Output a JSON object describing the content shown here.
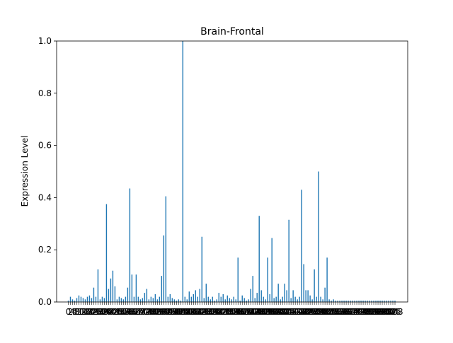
{
  "chart_data": {
    "type": "bar",
    "title": "Brain-Frontal",
    "xlabel": "",
    "ylabel": "Expression Level",
    "ylim": [
      0,
      1.0
    ],
    "yticks": [
      0.0,
      0.2,
      0.4,
      0.6,
      0.8,
      1.0
    ],
    "ytick_labels": [
      "0.0",
      "0.2",
      "0.4",
      "0.6",
      "0.8",
      "1.0"
    ],
    "xlim": [
      -11,
      320
    ],
    "xtick_labels_visible_start": "0",
    "xtick_labels_visible_end": "9",
    "grid": false,
    "bar_color": "#1f77b4",
    "x": [
      0,
      2,
      4,
      6,
      8,
      10,
      12,
      14,
      16,
      18,
      20,
      22,
      24,
      26,
      28,
      30,
      32,
      34,
      36,
      38,
      40,
      42,
      44,
      46,
      48,
      50,
      52,
      54,
      56,
      58,
      60,
      62,
      64,
      66,
      68,
      70,
      72,
      74,
      76,
      78,
      80,
      82,
      84,
      86,
      88,
      90,
      92,
      94,
      96,
      98,
      100,
      102,
      104,
      106,
      108,
      110,
      112,
      114,
      116,
      118,
      120,
      122,
      124,
      126,
      128,
      130,
      132,
      134,
      136,
      138,
      140,
      142,
      144,
      146,
      148,
      150,
      152,
      154,
      156,
      158,
      160,
      162,
      164,
      166,
      168,
      170,
      172,
      174,
      176,
      178,
      180,
      182,
      184,
      186,
      188,
      190,
      192,
      194,
      196,
      198,
      200,
      202,
      204,
      206,
      208,
      210,
      212,
      214,
      216,
      218,
      220,
      222,
      224,
      226,
      228,
      230,
      232,
      234,
      236,
      238,
      240,
      242,
      244,
      246,
      248,
      250,
      252,
      254,
      256,
      258,
      260,
      262,
      264,
      266,
      268,
      270,
      272,
      274,
      276,
      278,
      280,
      282,
      284,
      286,
      288,
      290,
      292,
      294,
      296,
      298,
      300,
      302,
      304,
      306,
      308
    ],
    "values": [
      0.005,
      0.02,
      0.01,
      0.005,
      0.015,
      0.025,
      0.02,
      0.015,
      0.01,
      0.02,
      0.025,
      0.015,
      0.055,
      0.02,
      0.125,
      0.01,
      0.02,
      0.015,
      0.375,
      0.05,
      0.09,
      0.12,
      0.06,
      0.01,
      0.02,
      0.015,
      0.01,
      0.02,
      0.055,
      0.435,
      0.105,
      0.02,
      0.105,
      0.02,
      0.01,
      0.015,
      0.035,
      0.05,
      0.01,
      0.02,
      0.015,
      0.03,
      0.01,
      0.02,
      0.1,
      0.255,
      0.405,
      0.02,
      0.03,
      0.015,
      0.01,
      0.005,
      0.01,
      0.005,
      1.0,
      0.02,
      0.01,
      0.04,
      0.02,
      0.03,
      0.045,
      0.02,
      0.05,
      0.25,
      0.015,
      0.07,
      0.02,
      0.01,
      0.02,
      0.005,
      0.01,
      0.035,
      0.02,
      0.03,
      0.01,
      0.025,
      0.015,
      0.01,
      0.02,
      0.01,
      0.17,
      0.005,
      0.025,
      0.015,
      0.005,
      0.01,
      0.05,
      0.1,
      0.015,
      0.035,
      0.33,
      0.045,
      0.02,
      0.01,
      0.17,
      0.03,
      0.245,
      0.015,
      0.02,
      0.07,
      0.01,
      0.02,
      0.07,
      0.045,
      0.315,
      0.015,
      0.045,
      0.02,
      0.01,
      0.02,
      0.43,
      0.145,
      0.045,
      0.045,
      0.025,
      0.01,
      0.125,
      0.02,
      0.5,
      0.02,
      0.01,
      0.055,
      0.17,
      0.01,
      0.005,
      0.01,
      0.005,
      0.005,
      0.005,
      0.005,
      0.005,
      0.005,
      0.005,
      0.005,
      0.005,
      0.005,
      0.005,
      0.005,
      0.005,
      0.005,
      0.005,
      0.005,
      0.005,
      0.005,
      0.005,
      0.005,
      0.005,
      0.005,
      0.005,
      0.005,
      0.005,
      0.005,
      0.005,
      0.005,
      0.005
    ]
  }
}
